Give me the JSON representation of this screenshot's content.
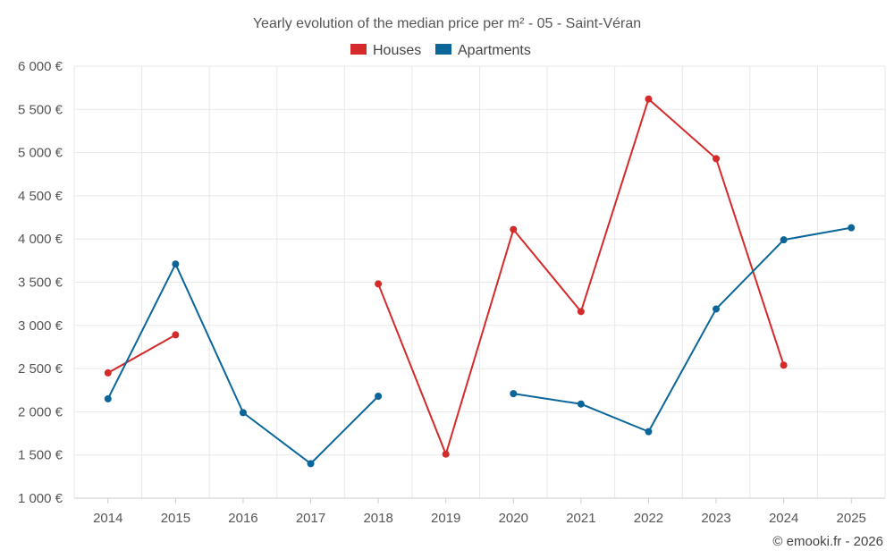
{
  "chart_data": {
    "type": "line",
    "title": "Yearly evolution of the median price per m² - 05 - Saint-Véran",
    "categories": [
      "2014",
      "2015",
      "2016",
      "2017",
      "2018",
      "2019",
      "2020",
      "2021",
      "2022",
      "2023",
      "2024",
      "2025"
    ],
    "series": [
      {
        "name": "Houses",
        "color": "#d42a2a",
        "values": [
          2450,
          2890,
          null,
          null,
          3480,
          1510,
          4110,
          3160,
          5620,
          4930,
          2540,
          null
        ]
      },
      {
        "name": "Apartments",
        "color": "#0a6699",
        "values": [
          2150,
          3710,
          1990,
          1400,
          2180,
          null,
          2210,
          2090,
          1770,
          3190,
          3990,
          4130
        ]
      }
    ],
    "ylim": [
      1000,
      6000
    ],
    "yticks": [
      1000,
      1500,
      2000,
      2500,
      3000,
      3500,
      4000,
      4500,
      5000,
      5500,
      6000
    ],
    "ytick_labels": [
      "1 000 €",
      "1 500 €",
      "2 000 €",
      "2 500 €",
      "3 000 €",
      "3 500 €",
      "4 000 €",
      "4 500 €",
      "5 000 €",
      "5 500 €",
      "6 000 €"
    ],
    "xlabel": "",
    "ylabel": "",
    "legend_position": "top-center",
    "grid": true
  },
  "credit": "© emooki.fr - 2026"
}
